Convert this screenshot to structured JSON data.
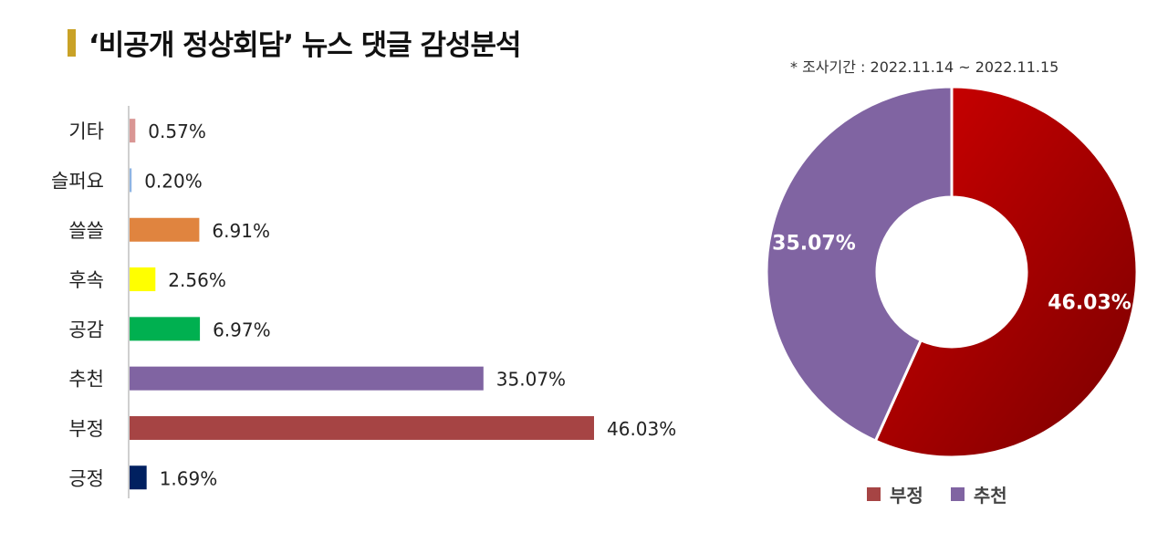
{
  "title": "‘비공개 정상회담’ 뉴스 댓글 감성분석",
  "period_note": "* 조사기간 : 2022.11.14 ~ 2022.11.15",
  "chart_data": [
    {
      "type": "bar",
      "orientation": "horizontal",
      "categories": [
        "기타",
        "슬퍼요",
        "쓸쓸",
        "후속",
        "공감",
        "추천",
        "부정",
        "긍정"
      ],
      "values": [
        0.57,
        0.2,
        6.91,
        2.56,
        6.97,
        35.07,
        46.03,
        1.69
      ],
      "value_labels": [
        "0.57%",
        "0.20%",
        "6.91%",
        "2.56%",
        "6.97%",
        "35.07%",
        "46.03%",
        "1.69%"
      ],
      "colors": [
        "#d99694",
        "#8eb4e3",
        "#e0843f",
        "#ffff00",
        "#00b050",
        "#8064a2",
        "#a64444",
        "#002060"
      ],
      "unit": "%"
    },
    {
      "type": "pie",
      "donut": true,
      "categories": [
        "부정",
        "추천"
      ],
      "values": [
        46.03,
        35.07
      ],
      "value_labels": [
        "46.03%",
        "35.07%"
      ],
      "colors": [
        "#c00000",
        "#8064a2"
      ],
      "legend": "bottom"
    }
  ],
  "legend": {
    "items": [
      {
        "label": "부정",
        "color": "#a64444"
      },
      {
        "label": "추천",
        "color": "#8064a2"
      }
    ]
  }
}
